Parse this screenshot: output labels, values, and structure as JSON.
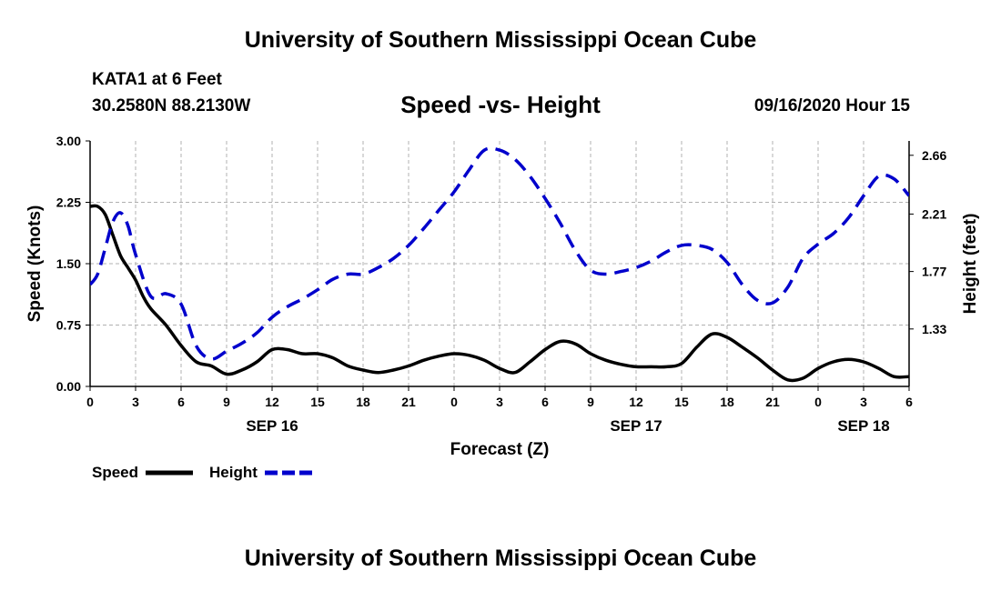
{
  "header": {
    "title_top": "University of Southern Mississippi Ocean Cube",
    "title_bottom": "University of Southern Mississippi Ocean Cube",
    "station": "KATA1 at 6 Feet",
    "coords": "30.2580N 88.2130W",
    "datetime": "09/16/2020 Hour 15"
  },
  "chart_data": {
    "type": "line",
    "title": "Speed -vs- Height",
    "xlabel": "Forecast (Z)",
    "ylabel_left": "Speed (Knots)",
    "ylabel_right": "Height (feet)",
    "x_range_hours": [
      0,
      54
    ],
    "x_tick_hours": [
      0,
      3,
      6,
      9,
      12,
      15,
      18,
      21,
      24,
      27,
      30,
      33,
      36,
      39,
      42,
      45,
      48,
      51,
      54
    ],
    "x_tick_labels": [
      "0",
      "3",
      "6",
      "9",
      "12",
      "15",
      "18",
      "21",
      "0",
      "3",
      "6",
      "9",
      "12",
      "15",
      "18",
      "21",
      "0",
      "3",
      "6"
    ],
    "date_labels": [
      {
        "hour": 12,
        "label": "SEP 16"
      },
      {
        "hour": 36,
        "label": "SEP 17"
      },
      {
        "hour": 51,
        "label": "SEP 18"
      }
    ],
    "y_left": {
      "range": [
        0,
        3.0
      ],
      "ticks": [
        0,
        0.75,
        1.5,
        2.25,
        3.0
      ],
      "tick_labels": [
        "0.00",
        "0.75",
        "1.50",
        "2.25",
        "3.00"
      ]
    },
    "y_right": {
      "range": [
        0.89,
        2.77
      ],
      "ticks": [
        1.33,
        1.77,
        2.21,
        2.66
      ],
      "tick_labels": [
        "1.33",
        "1.77",
        "2.21",
        "2.66"
      ]
    },
    "grid": true,
    "legend": [
      {
        "name": "Speed",
        "color": "#000000",
        "style": "solid"
      },
      {
        "name": "Height",
        "color": "#0000cc",
        "style": "dashed"
      }
    ],
    "series": [
      {
        "name": "Speed",
        "axis": "left",
        "color": "#000000",
        "x": [
          0,
          0.5,
          1,
          1.5,
          2,
          2.5,
          3,
          3.5,
          4,
          5,
          6,
          7,
          8,
          9,
          10,
          11,
          12,
          13,
          14,
          15,
          16,
          17,
          18,
          19,
          20,
          21,
          22,
          23,
          24,
          25,
          26,
          27,
          28,
          29,
          30,
          31,
          32,
          33,
          34,
          35,
          36,
          37,
          38,
          39,
          40,
          41,
          42,
          43,
          44,
          45,
          46,
          47,
          48,
          49,
          50,
          51,
          52,
          53,
          54
        ],
        "values": [
          2.2,
          2.2,
          2.1,
          1.85,
          1.6,
          1.45,
          1.3,
          1.1,
          0.95,
          0.75,
          0.5,
          0.3,
          0.25,
          0.15,
          0.2,
          0.3,
          0.45,
          0.45,
          0.4,
          0.4,
          0.35,
          0.25,
          0.2,
          0.17,
          0.2,
          0.25,
          0.32,
          0.37,
          0.4,
          0.38,
          0.32,
          0.22,
          0.17,
          0.3,
          0.45,
          0.55,
          0.52,
          0.4,
          0.32,
          0.27,
          0.24,
          0.24,
          0.24,
          0.28,
          0.48,
          0.64,
          0.6,
          0.48,
          0.35,
          0.2,
          0.08,
          0.1,
          0.22,
          0.3,
          0.33,
          0.3,
          0.22,
          0.12,
          0.12
        ]
      },
      {
        "name": "Height",
        "axis": "right",
        "color": "#0000cc",
        "x": [
          0,
          0.5,
          1,
          1.5,
          2,
          2.5,
          3,
          4,
          5,
          6,
          7,
          8,
          9,
          10,
          11,
          12,
          13,
          14,
          15,
          16,
          17,
          18,
          19,
          20,
          21,
          22,
          23,
          24,
          25,
          26,
          27,
          28,
          29,
          30,
          31,
          32,
          33,
          34,
          35,
          36,
          37,
          38,
          39,
          40,
          41,
          42,
          43,
          44,
          45,
          46,
          47,
          48,
          49,
          50,
          51,
          52,
          53,
          54
        ],
        "values": [
          1.67,
          1.75,
          1.95,
          2.15,
          2.22,
          2.12,
          1.9,
          1.58,
          1.6,
          1.52,
          1.2,
          1.1,
          1.16,
          1.22,
          1.3,
          1.42,
          1.5,
          1.56,
          1.63,
          1.71,
          1.75,
          1.75,
          1.8,
          1.87,
          1.97,
          2.1,
          2.24,
          2.38,
          2.55,
          2.7,
          2.7,
          2.63,
          2.5,
          2.33,
          2.14,
          1.93,
          1.78,
          1.75,
          1.77,
          1.8,
          1.85,
          1.92,
          1.97,
          1.97,
          1.94,
          1.84,
          1.67,
          1.55,
          1.53,
          1.65,
          1.87,
          1.98,
          2.06,
          2.18,
          2.35,
          2.5,
          2.48,
          2.35
        ]
      }
    ]
  }
}
